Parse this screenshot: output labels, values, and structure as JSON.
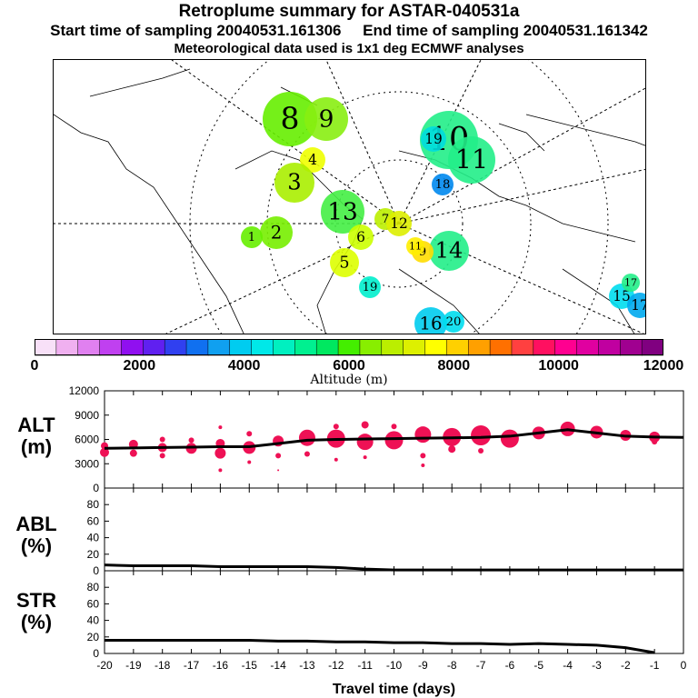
{
  "header": {
    "title": "Retroplume summary for ASTAR-040531a",
    "start": "Start time of sampling 20040531.161306",
    "end": "End time of sampling 20040531.161342",
    "met": "Meteorological data used is 1x1 deg ECMWF analyses"
  },
  "map": {
    "markers": [
      {
        "label": "8",
        "color": "#66ee00"
      },
      {
        "label": "9",
        "color": "#88ee11"
      },
      {
        "label": "10",
        "color": "#22ee88"
      },
      {
        "label": "11",
        "color": "#22ee88"
      },
      {
        "label": "13",
        "color": "#44ee44"
      },
      {
        "label": "14",
        "color": "#22ee88"
      },
      {
        "label": "16",
        "color": "#00ccee"
      },
      {
        "label": "20",
        "color": "#00ddee"
      },
      {
        "label": "5",
        "color": "#ddff00"
      },
      {
        "label": "4",
        "color": "#eeff00"
      },
      {
        "label": "3",
        "color": "#aaee00"
      },
      {
        "label": "2",
        "color": "#77ee00"
      },
      {
        "label": "1",
        "color": "#66ee00"
      },
      {
        "label": "6",
        "color": "#ccff00"
      },
      {
        "label": "7",
        "color": "#bbee00"
      },
      {
        "label": "9",
        "color": "#ffdd00"
      },
      {
        "label": "11",
        "color": "#ffee00"
      },
      {
        "label": "12",
        "color": "#ddee00"
      },
      {
        "label": "15",
        "color": "#00ddee"
      },
      {
        "label": "17",
        "color": "#00aaee"
      },
      {
        "label": "18",
        "color": "#0088ee"
      },
      {
        "label": "19",
        "color": "#00eecc"
      },
      {
        "label": "19",
        "color": "#00dddd"
      },
      {
        "label": "17",
        "color": "#22ee88"
      }
    ]
  },
  "colorbar": {
    "colors": [
      "#f8e0f8",
      "#f0b0f0",
      "#e080f0",
      "#c040f0",
      "#9010f0",
      "#6020f0",
      "#3040f0",
      "#1070f0",
      "#10a0f0",
      "#00ccf0",
      "#00e8e8",
      "#00f0c0",
      "#00f090",
      "#00e860",
      "#44ee00",
      "#88ee00",
      "#bbee00",
      "#ddf000",
      "#ffff00",
      "#ffd000",
      "#ffa000",
      "#ff7000",
      "#ff4040",
      "#ff1060",
      "#ff0090",
      "#e000a0",
      "#c000a0",
      "#a00090",
      "#800080"
    ],
    "labels": [
      "0",
      "2000",
      "4000",
      "6000",
      "8000",
      "10000",
      "12000"
    ],
    "caption": "Altitude (m)"
  },
  "chart_data": [
    {
      "type": "line",
      "title": "",
      "ylabel": "ALT (m)",
      "ylim": [
        0,
        12000
      ],
      "yticks": [
        "12000",
        "9000",
        "6000",
        "3000",
        "0"
      ],
      "x": [
        -20,
        -19,
        -18,
        -17,
        -16,
        -15,
        -14,
        -13,
        -12,
        -11,
        -10,
        -9,
        -8,
        -7,
        -6,
        -5,
        -4,
        -3,
        -2,
        -1,
        0
      ],
      "series": [
        {
          "name": "mean altitude",
          "values": [
            4900,
            4950,
            5000,
            5050,
            5100,
            5100,
            5500,
            5900,
            6000,
            6050,
            6100,
            6150,
            6200,
            6250,
            6400,
            6800,
            7200,
            6800,
            6400,
            6300,
            6250
          ]
        }
      ],
      "scatter": [
        {
          "x": -20,
          "y": 4400,
          "s": 5
        },
        {
          "x": -20,
          "y": 5200,
          "s": 4
        },
        {
          "x": -19,
          "y": 5400,
          "s": 5
        },
        {
          "x": -19,
          "y": 4300,
          "s": 4
        },
        {
          "x": -18,
          "y": 5000,
          "s": 5
        },
        {
          "x": -18,
          "y": 4000,
          "s": 3
        },
        {
          "x": -18,
          "y": 6000,
          "s": 3
        },
        {
          "x": -17,
          "y": 4900,
          "s": 6
        },
        {
          "x": -17,
          "y": 5900,
          "s": 3
        },
        {
          "x": -16,
          "y": 4300,
          "s": 6
        },
        {
          "x": -16,
          "y": 5500,
          "s": 5
        },
        {
          "x": -16,
          "y": 2200,
          "s": 2
        },
        {
          "x": -16,
          "y": 7500,
          "s": 2
        },
        {
          "x": -15,
          "y": 5000,
          "s": 7
        },
        {
          "x": -15,
          "y": 6700,
          "s": 3
        },
        {
          "x": -15,
          "y": 3200,
          "s": 2
        },
        {
          "x": -14,
          "y": 5800,
          "s": 6
        },
        {
          "x": -14,
          "y": 4000,
          "s": 3
        },
        {
          "x": -14,
          "y": 2200,
          "s": 1
        },
        {
          "x": -13,
          "y": 6200,
          "s": 9
        },
        {
          "x": -13,
          "y": 4200,
          "s": 3
        },
        {
          "x": -12,
          "y": 6100,
          "s": 10
        },
        {
          "x": -12,
          "y": 7600,
          "s": 3
        },
        {
          "x": -12,
          "y": 3500,
          "s": 2
        },
        {
          "x": -11,
          "y": 5700,
          "s": 9
        },
        {
          "x": -11,
          "y": 7800,
          "s": 4
        },
        {
          "x": -11,
          "y": 3800,
          "s": 2
        },
        {
          "x": -10,
          "y": 5900,
          "s": 10
        },
        {
          "x": -10,
          "y": 7600,
          "s": 3
        },
        {
          "x": -9,
          "y": 6600,
          "s": 9
        },
        {
          "x": -9,
          "y": 4000,
          "s": 3
        },
        {
          "x": -9,
          "y": 2800,
          "s": 2
        },
        {
          "x": -8,
          "y": 6300,
          "s": 10
        },
        {
          "x": -8,
          "y": 4800,
          "s": 4
        },
        {
          "x": -7,
          "y": 6500,
          "s": 11
        },
        {
          "x": -7,
          "y": 4600,
          "s": 3
        },
        {
          "x": -6,
          "y": 6100,
          "s": 10
        },
        {
          "x": -5,
          "y": 6800,
          "s": 7
        },
        {
          "x": -4,
          "y": 7300,
          "s": 8
        },
        {
          "x": -3,
          "y": 6900,
          "s": 7
        },
        {
          "x": -2,
          "y": 6500,
          "s": 6
        },
        {
          "x": -1,
          "y": 6300,
          "s": 6
        },
        {
          "x": -1,
          "y": 5700,
          "s": 3
        }
      ]
    },
    {
      "type": "line",
      "ylabel": "ABL (%)",
      "ylim": [
        0,
        100
      ],
      "yticks": [
        "80",
        "60",
        "40",
        "20",
        "0"
      ],
      "x": [
        -20,
        -19,
        -18,
        -17,
        -16,
        -15,
        -14,
        -13,
        -12,
        -11,
        -10,
        -9,
        -8,
        -7,
        -6,
        -5,
        -4,
        -3,
        -2,
        -1,
        0
      ],
      "series": [
        {
          "name": "ABL fraction",
          "values": [
            7,
            6,
            6,
            6,
            5,
            5,
            5,
            5,
            4,
            2,
            1,
            1,
            1,
            1,
            1,
            1,
            1,
            1,
            1,
            1,
            1
          ]
        }
      ]
    },
    {
      "type": "line",
      "ylabel": "STR (%)",
      "xlabel": "Travel time (days)",
      "ylim": [
        0,
        100
      ],
      "yticks": [
        "80",
        "60",
        "40",
        "20",
        "0"
      ],
      "x": [
        -20,
        -19,
        -18,
        -17,
        -16,
        -15,
        -14,
        -13,
        -12,
        -11,
        -10,
        -9,
        -8,
        -7,
        -6,
        -5,
        -4,
        -3,
        -2,
        -1
      ],
      "xticks": [
        "-20",
        "-19",
        "-18",
        "-17",
        "-16",
        "-15",
        "-14",
        "-13",
        "-12",
        "-11",
        "-10",
        "-9",
        "-8",
        "-7",
        "-6",
        "-5",
        "-4",
        "-3",
        "-2",
        "-1",
        "0"
      ],
      "series": [
        {
          "name": "STR fraction",
          "values": [
            16,
            16,
            16,
            16,
            16,
            16,
            15,
            15,
            14,
            14,
            13,
            13,
            12,
            12,
            11,
            12,
            11,
            10,
            7,
            1
          ]
        }
      ]
    }
  ]
}
